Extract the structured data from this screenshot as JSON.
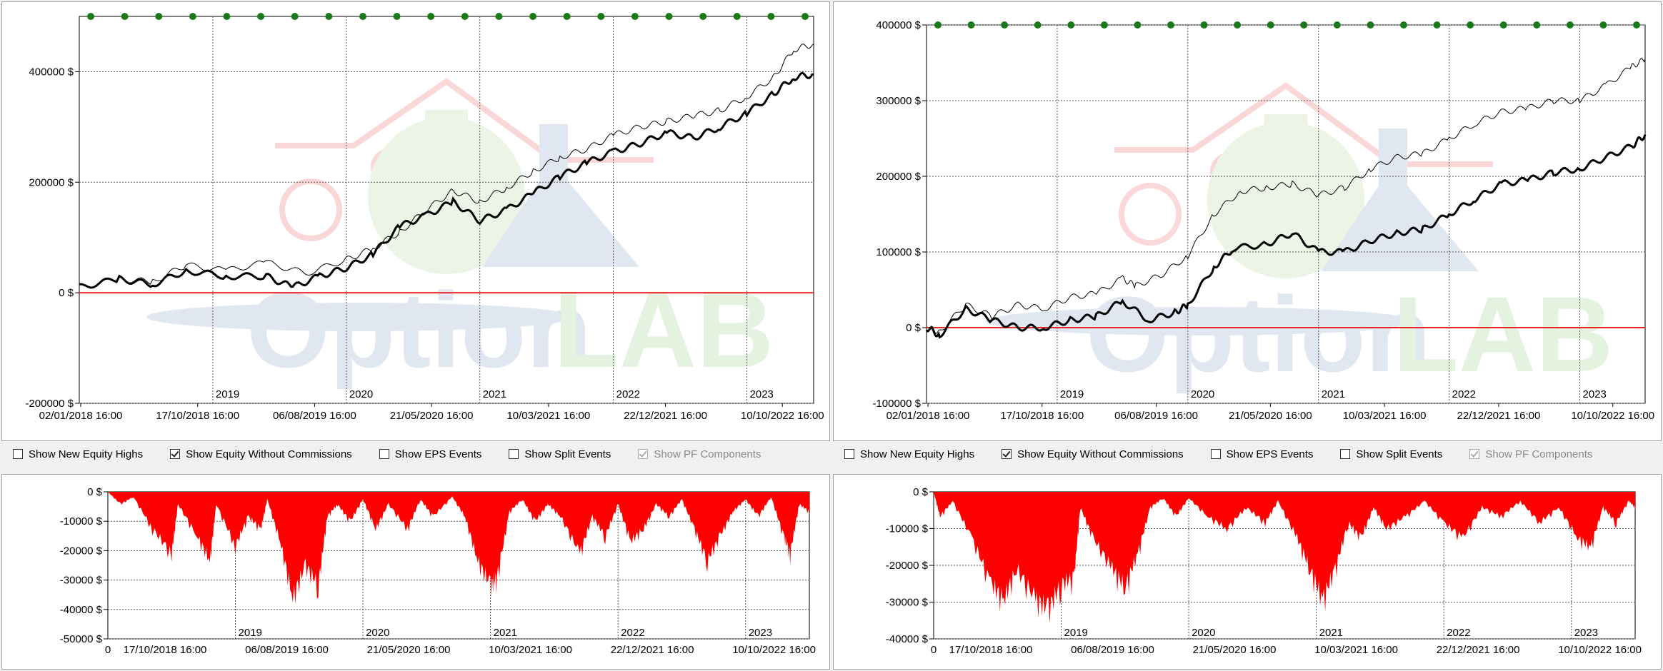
{
  "checkboxes": [
    {
      "label": "Show New Equity Highs",
      "checked": false,
      "disabled": false
    },
    {
      "label": "Show Equity Without Commissions",
      "checked": true,
      "disabled": false
    },
    {
      "label": "Show EPS Events",
      "checked": false,
      "disabled": false
    },
    {
      "label": "Show Split Events",
      "checked": false,
      "disabled": false
    },
    {
      "label": "Show PF Components",
      "checked": true,
      "disabled": true
    }
  ],
  "watermark": "OptionLAB",
  "colors": {
    "zero_line": "#e8282a",
    "drawdown": "#ff0000",
    "marker": "#1a7a1a",
    "equity": "#000000"
  },
  "chart_data": [
    {
      "type": "line",
      "name": "equity-left",
      "xlabels": [
        "02/01/2018 16:00",
        "17/10/2018 16:00",
        "06/08/2019 16:00",
        "21/05/2020 16:00",
        "10/03/2021 16:00",
        "22/12/2021 16:00",
        "10/10/2022 16:00"
      ],
      "years": [
        "2019",
        "2020",
        "2021",
        "2022",
        "2023"
      ],
      "yticks": [
        "400000 $",
        "200000 $",
        "0 $",
        "-200000 $"
      ],
      "ylim": [
        -200000,
        500000
      ],
      "xlim": [
        2018.0,
        2023.5
      ],
      "markers_y": 500000,
      "series": [
        {
          "style": "thin",
          "points": [
            [
              2018.0,
              10000
            ],
            [
              2018.3,
              25000
            ],
            [
              2018.55,
              20000
            ],
            [
              2018.8,
              50000
            ],
            [
              2019.1,
              40000
            ],
            [
              2019.4,
              55000
            ],
            [
              2019.7,
              35000
            ],
            [
              2020.0,
              60000
            ],
            [
              2020.2,
              80000
            ],
            [
              2020.4,
              110000
            ],
            [
              2020.6,
              150000
            ],
            [
              2020.8,
              185000
            ],
            [
              2021.0,
              165000
            ],
            [
              2021.2,
              190000
            ],
            [
              2021.4,
              220000
            ],
            [
              2021.6,
              245000
            ],
            [
              2021.8,
              260000
            ],
            [
              2022.0,
              285000
            ],
            [
              2022.2,
              300000
            ],
            [
              2022.4,
              310000
            ],
            [
              2022.6,
              320000
            ],
            [
              2022.8,
              330000
            ],
            [
              2023.0,
              355000
            ],
            [
              2023.2,
              390000
            ],
            [
              2023.35,
              440000
            ],
            [
              2023.5,
              450000
            ]
          ]
        },
        {
          "style": "bold",
          "points": [
            [
              2018.0,
              10000
            ],
            [
              2018.3,
              25000
            ],
            [
              2018.55,
              15000
            ],
            [
              2018.8,
              40000
            ],
            [
              2019.1,
              30000
            ],
            [
              2019.4,
              30000
            ],
            [
              2019.6,
              10000
            ],
            [
              2019.8,
              30000
            ],
            [
              2020.0,
              45000
            ],
            [
              2020.2,
              70000
            ],
            [
              2020.4,
              120000
            ],
            [
              2020.6,
              140000
            ],
            [
              2020.8,
              165000
            ],
            [
              2021.0,
              130000
            ],
            [
              2021.2,
              150000
            ],
            [
              2021.4,
              180000
            ],
            [
              2021.6,
              210000
            ],
            [
              2021.8,
              235000
            ],
            [
              2022.0,
              255000
            ],
            [
              2022.2,
              270000
            ],
            [
              2022.4,
              290000
            ],
            [
              2022.6,
              280000
            ],
            [
              2022.8,
              300000
            ],
            [
              2023.0,
              325000
            ],
            [
              2023.2,
              360000
            ],
            [
              2023.35,
              390000
            ],
            [
              2023.5,
              395000
            ]
          ]
        }
      ]
    },
    {
      "type": "line",
      "name": "equity-right",
      "xlabels": [
        "02/01/2018 16:00",
        "17/10/2018 16:00",
        "06/08/2019 16:00",
        "21/05/2020 16:00",
        "10/03/2021 16:00",
        "22/12/2021 16:00",
        "10/10/2022 16:00"
      ],
      "years": [
        "2019",
        "2020",
        "2021",
        "2022",
        "2023"
      ],
      "yticks": [
        "400000 $",
        "300000 $",
        "200000 $",
        "100000 $",
        "0 $",
        "-100000 $"
      ],
      "ylim": [
        -100000,
        400000
      ],
      "xlim": [
        2018.0,
        2023.5
      ],
      "markers_y": 400000,
      "series": [
        {
          "style": "thin",
          "points": [
            [
              2018.0,
              0
            ],
            [
              2018.1,
              -5000
            ],
            [
              2018.3,
              30000
            ],
            [
              2018.5,
              15000
            ],
            [
              2018.7,
              30000
            ],
            [
              2018.9,
              25000
            ],
            [
              2019.1,
              40000
            ],
            [
              2019.3,
              45000
            ],
            [
              2019.5,
              65000
            ],
            [
              2019.6,
              55000
            ],
            [
              2019.8,
              70000
            ],
            [
              2020.0,
              95000
            ],
            [
              2020.2,
              150000
            ],
            [
              2020.4,
              180000
            ],
            [
              2020.6,
              185000
            ],
            [
              2020.8,
              190000
            ],
            [
              2021.0,
              175000
            ],
            [
              2021.2,
              185000
            ],
            [
              2021.4,
              210000
            ],
            [
              2021.6,
              225000
            ],
            [
              2021.8,
              230000
            ],
            [
              2022.0,
              250000
            ],
            [
              2022.2,
              270000
            ],
            [
              2022.4,
              285000
            ],
            [
              2022.6,
              290000
            ],
            [
              2022.8,
              300000
            ],
            [
              2023.0,
              300000
            ],
            [
              2023.2,
              320000
            ],
            [
              2023.4,
              345000
            ],
            [
              2023.5,
              355000
            ]
          ]
        },
        {
          "style": "bold",
          "points": [
            [
              2018.0,
              0
            ],
            [
              2018.1,
              -10000
            ],
            [
              2018.3,
              25000
            ],
            [
              2018.5,
              10000
            ],
            [
              2018.7,
              0
            ],
            [
              2018.9,
              0
            ],
            [
              2019.1,
              10000
            ],
            [
              2019.3,
              15000
            ],
            [
              2019.5,
              35000
            ],
            [
              2019.7,
              10000
            ],
            [
              2019.9,
              20000
            ],
            [
              2020.0,
              30000
            ],
            [
              2020.2,
              80000
            ],
            [
              2020.35,
              105000
            ],
            [
              2020.6,
              110000
            ],
            [
              2020.8,
              125000
            ],
            [
              2021.0,
              100000
            ],
            [
              2021.2,
              100000
            ],
            [
              2021.4,
              115000
            ],
            [
              2021.6,
              125000
            ],
            [
              2021.8,
              130000
            ],
            [
              2022.0,
              150000
            ],
            [
              2022.2,
              170000
            ],
            [
              2022.4,
              190000
            ],
            [
              2022.6,
              195000
            ],
            [
              2022.8,
              205000
            ],
            [
              2023.0,
              210000
            ],
            [
              2023.2,
              225000
            ],
            [
              2023.4,
              240000
            ],
            [
              2023.5,
              255000
            ]
          ]
        }
      ]
    },
    {
      "type": "area",
      "name": "drawdown-left",
      "xlabels": [
        "0",
        "17/10/2018 16:00",
        "06/08/2019 16:00",
        "21/05/2020 16:00",
        "10/03/2021 16:00",
        "22/12/2021 16:00",
        "10/10/2022 16:00"
      ],
      "years": [
        "2019",
        "2020",
        "2021",
        "2022",
        "2023"
      ],
      "yticks": [
        "0 $",
        "-10000 $",
        "-20000 $",
        "-30000 $",
        "-40000 $",
        "-50000 $"
      ],
      "ylim": [
        -50000,
        0
      ],
      "xlim": [
        2018.0,
        2023.5
      ],
      "points": [
        [
          2018.0,
          0
        ],
        [
          2018.1,
          -5000
        ],
        [
          2018.2,
          -2000
        ],
        [
          2018.35,
          -15000
        ],
        [
          2018.5,
          -25000
        ],
        [
          2018.55,
          -5000
        ],
        [
          2018.7,
          -18000
        ],
        [
          2018.8,
          -28000
        ],
        [
          2018.85,
          -5000
        ],
        [
          2019.0,
          -22000
        ],
        [
          2019.1,
          -10000
        ],
        [
          2019.2,
          -15000
        ],
        [
          2019.25,
          -3000
        ],
        [
          2019.35,
          -20000
        ],
        [
          2019.45,
          -43000
        ],
        [
          2019.55,
          -30000
        ],
        [
          2019.65,
          -38000
        ],
        [
          2019.72,
          -10000
        ],
        [
          2019.8,
          -5000
        ],
        [
          2019.9,
          -12000
        ],
        [
          2020.0,
          -3000
        ],
        [
          2020.1,
          -15000
        ],
        [
          2020.2,
          -5000
        ],
        [
          2020.35,
          -15000
        ],
        [
          2020.45,
          -3000
        ],
        [
          2020.55,
          -10000
        ],
        [
          2020.7,
          -2000
        ],
        [
          2020.8,
          -10000
        ],
        [
          2020.9,
          -28000
        ],
        [
          2021.0,
          -38000
        ],
        [
          2021.05,
          -35000
        ],
        [
          2021.15,
          -8000
        ],
        [
          2021.25,
          -3000
        ],
        [
          2021.35,
          -12000
        ],
        [
          2021.45,
          -5000
        ],
        [
          2021.55,
          -10000
        ],
        [
          2021.7,
          -25000
        ],
        [
          2021.8,
          -10000
        ],
        [
          2021.9,
          -18000
        ],
        [
          2022.0,
          -5000
        ],
        [
          2022.1,
          -20000
        ],
        [
          2022.2,
          -15000
        ],
        [
          2022.3,
          -5000
        ],
        [
          2022.4,
          -10000
        ],
        [
          2022.5,
          -3000
        ],
        [
          2022.6,
          -15000
        ],
        [
          2022.7,
          -28000
        ],
        [
          2022.8,
          -18000
        ],
        [
          2022.9,
          -8000
        ],
        [
          2023.0,
          -3000
        ],
        [
          2023.1,
          -10000
        ],
        [
          2023.2,
          -2000
        ],
        [
          2023.3,
          -18000
        ],
        [
          2023.35,
          -25000
        ],
        [
          2023.42,
          -5000
        ],
        [
          2023.5,
          -8000
        ]
      ]
    },
    {
      "type": "area",
      "name": "drawdown-right",
      "xlabels": [
        "0",
        "17/10/2018 16:00",
        "06/08/2019 16:00",
        "21/05/2020 16:00",
        "10/03/2021 16:00",
        "22/12/2021 16:00",
        "10/10/2022 16:00"
      ],
      "years": [
        "2019",
        "2020",
        "2021",
        "2022",
        "2023"
      ],
      "yticks": [
        "0 $",
        "-10000 $",
        "-20000 $",
        "-30000 $",
        "-40000 $"
      ],
      "ylim": [
        -40000,
        0
      ],
      "xlim": [
        2018.0,
        2023.5
      ],
      "points": [
        [
          2018.0,
          0
        ],
        [
          2018.05,
          -8000
        ],
        [
          2018.15,
          -3000
        ],
        [
          2018.3,
          -15000
        ],
        [
          2018.45,
          -30000
        ],
        [
          2018.55,
          -35000
        ],
        [
          2018.65,
          -25000
        ],
        [
          2018.8,
          -35000
        ],
        [
          2018.9,
          -38000
        ],
        [
          2019.0,
          -30000
        ],
        [
          2019.1,
          -28000
        ],
        [
          2019.15,
          -5000
        ],
        [
          2019.25,
          -15000
        ],
        [
          2019.4,
          -25000
        ],
        [
          2019.5,
          -31000
        ],
        [
          2019.6,
          -20000
        ],
        [
          2019.7,
          -5000
        ],
        [
          2019.8,
          -2000
        ],
        [
          2019.9,
          -8000
        ],
        [
          2020.0,
          -2000
        ],
        [
          2020.15,
          -8000
        ],
        [
          2020.3,
          -12000
        ],
        [
          2020.45,
          -5000
        ],
        [
          2020.6,
          -10000
        ],
        [
          2020.7,
          -3000
        ],
        [
          2020.85,
          -15000
        ],
        [
          2020.95,
          -25000
        ],
        [
          2021.05,
          -35000
        ],
        [
          2021.15,
          -25000
        ],
        [
          2021.25,
          -10000
        ],
        [
          2021.35,
          -15000
        ],
        [
          2021.45,
          -5000
        ],
        [
          2021.55,
          -12000
        ],
        [
          2021.7,
          -8000
        ],
        [
          2021.85,
          -3000
        ],
        [
          2022.0,
          -10000
        ],
        [
          2022.15,
          -15000
        ],
        [
          2022.3,
          -5000
        ],
        [
          2022.45,
          -8000
        ],
        [
          2022.6,
          -3000
        ],
        [
          2022.75,
          -10000
        ],
        [
          2022.9,
          -5000
        ],
        [
          2023.05,
          -15000
        ],
        [
          2023.15,
          -18000
        ],
        [
          2023.25,
          -5000
        ],
        [
          2023.35,
          -10000
        ],
        [
          2023.45,
          -3000
        ],
        [
          2023.5,
          -5000
        ]
      ]
    }
  ]
}
